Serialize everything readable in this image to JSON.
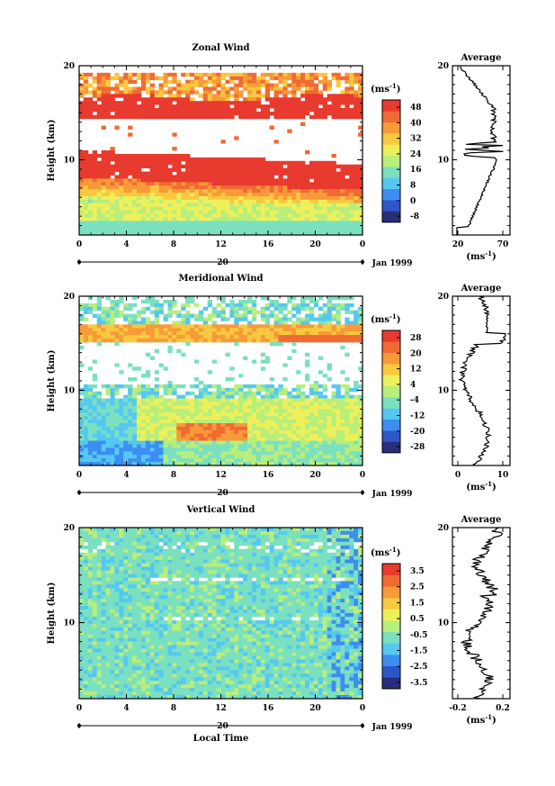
{
  "chart_data": [
    {
      "type": "heatmap",
      "title": "Zonal Wind",
      "ylabel": "Height (km)",
      "ylim": [
        2,
        20
      ],
      "y_ticks": [
        "10",
        "20"
      ],
      "x_ticks": [
        "0",
        "4",
        "8",
        "12",
        "16",
        "20",
        "0"
      ],
      "date_label": "20",
      "month_label": "Jan 1999",
      "colorbar": {
        "unit": "(ms",
        "unit_exp": "-1",
        "unit_close": ")",
        "ticks": [
          "48",
          "40",
          "32",
          "24",
          "16",
          "8",
          "0",
          "-8"
        ],
        "colors": [
          "#2a2e7a",
          "#2f56c8",
          "#3d8ef0",
          "#55c8f2",
          "#7be0c0",
          "#b8ee7a",
          "#eef05a",
          "#f8c840",
          "#f79a38",
          "#f06a34",
          "#e83a2e"
        ]
      },
      "profile": {
        "title": "Average",
        "y_ticks": [
          "10",
          "20"
        ],
        "x_ticks": [
          "20",
          "70"
        ],
        "xlabel": "(ms",
        "xlabel_exp": "-1",
        "xlabel_close": ")"
      }
    },
    {
      "type": "heatmap",
      "title": "Meridional Wind",
      "ylabel": "Height (km)",
      "ylim": [
        2,
        20
      ],
      "y_ticks": [
        "10",
        "20"
      ],
      "x_ticks": [
        "0",
        "4",
        "8",
        "12",
        "16",
        "20",
        "0"
      ],
      "date_label": "20",
      "month_label": "Jan 1999",
      "colorbar": {
        "unit": "(ms",
        "unit_exp": "-1",
        "unit_close": ")",
        "ticks": [
          "28",
          "20",
          "12",
          "4",
          "-4",
          "-12",
          "-20",
          "-28"
        ],
        "colors": [
          "#2a2e7a",
          "#2f56c8",
          "#3d8ef0",
          "#55c8f2",
          "#7be0c0",
          "#b8ee7a",
          "#eef05a",
          "#f8c840",
          "#f79a38",
          "#f06a34",
          "#e83a2e"
        ]
      },
      "profile": {
        "title": "Average",
        "y_ticks": [
          "10",
          "20"
        ],
        "x_ticks": [
          "0",
          "10"
        ],
        "xlabel": "(ms",
        "xlabel_exp": "-1",
        "xlabel_close": ")"
      }
    },
    {
      "type": "heatmap",
      "title": "Vertical Wind",
      "ylabel": "Height (km)",
      "xlabel": "Local Time",
      "ylim": [
        2,
        20
      ],
      "y_ticks": [
        "10",
        "20"
      ],
      "x_ticks": [
        "0",
        "4",
        "8",
        "12",
        "16",
        "20",
        "0"
      ],
      "date_label": "20",
      "month_label": "Jan 1999",
      "colorbar": {
        "unit": "(ms",
        "unit_exp": "-1",
        "unit_close": ")",
        "ticks": [
          "3.5",
          "2.5",
          "1.5",
          "0.5",
          "-0.5",
          "-1.5",
          "-2.5",
          "-3.5"
        ],
        "colors": [
          "#2a2e7a",
          "#2f56c8",
          "#3d8ef0",
          "#55c8f2",
          "#7be0c0",
          "#b8ee7a",
          "#eef05a",
          "#f8c840",
          "#f79a38",
          "#f06a34",
          "#e83a2e"
        ]
      },
      "profile": {
        "title": "Average",
        "y_ticks": [
          "10",
          "20"
        ],
        "x_ticks": [
          "-0.2",
          "0.2"
        ],
        "xlabel": "(ms",
        "xlabel_exp": "-1",
        "xlabel_close": ")"
      }
    }
  ]
}
